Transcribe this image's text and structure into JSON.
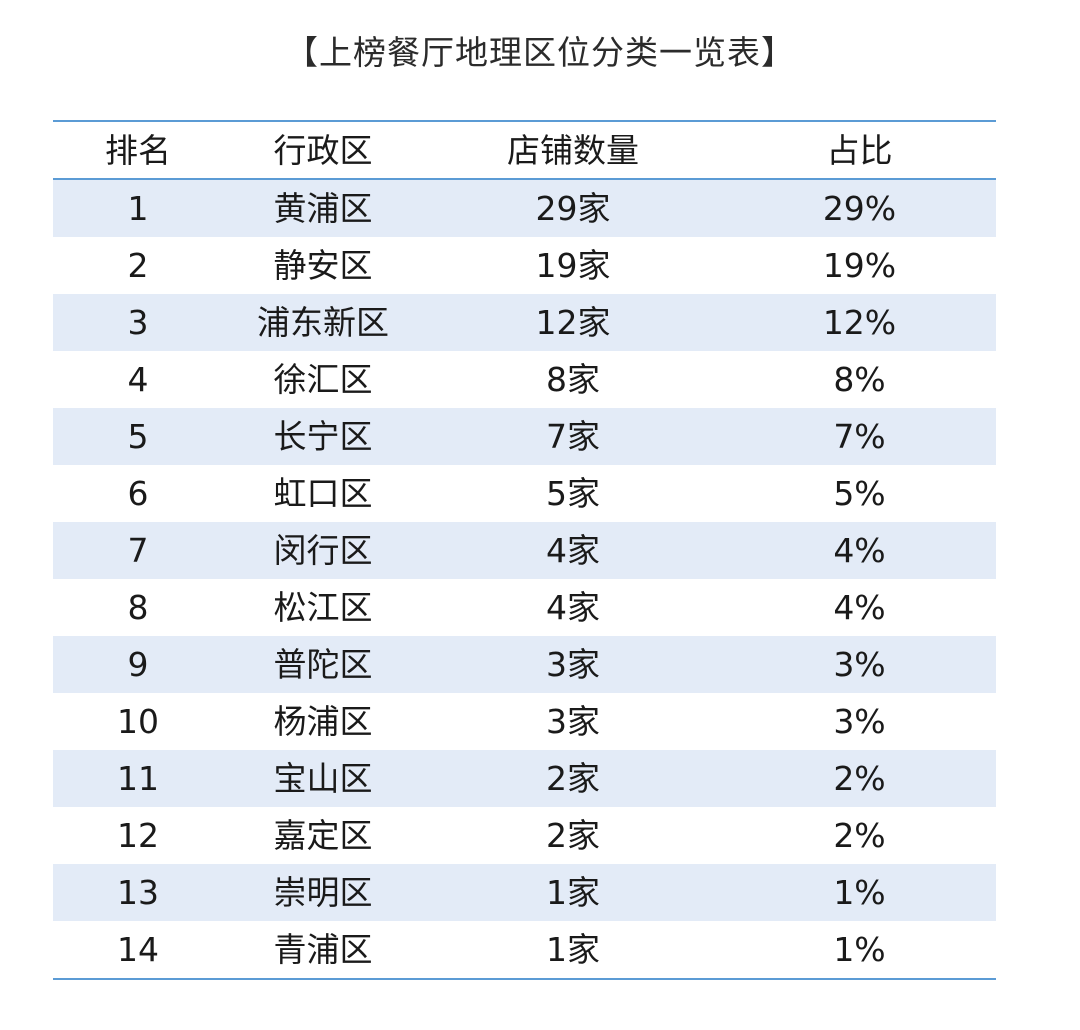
{
  "title": "【上榜餐厅地理区位分类一览表】",
  "table": {
    "headers": [
      "排名",
      "行政区",
      "店铺数量",
      "占比"
    ],
    "rows": [
      [
        "1",
        "黄浦区",
        "29家",
        "29%"
      ],
      [
        "2",
        "静安区",
        "19家",
        "19%"
      ],
      [
        "3",
        "浦东新区",
        "12家",
        "12%"
      ],
      [
        "4",
        "徐汇区",
        "8家",
        "8%"
      ],
      [
        "5",
        "长宁区",
        "7家",
        "7%"
      ],
      [
        "6",
        "虹口区",
        "5家",
        "5%"
      ],
      [
        "7",
        "闵行区",
        "4家",
        "4%"
      ],
      [
        "8",
        "松江区",
        "4家",
        "4%"
      ],
      [
        "9",
        "普陀区",
        "3家",
        "3%"
      ],
      [
        "10",
        "杨浦区",
        "3家",
        "3%"
      ],
      [
        "11",
        "宝山区",
        "2家",
        "2%"
      ],
      [
        "12",
        "嘉定区",
        "2家",
        "2%"
      ],
      [
        "13",
        "崇明区",
        "1家",
        "1%"
      ],
      [
        "14",
        "青浦区",
        "1家",
        "1%"
      ]
    ]
  },
  "colors": {
    "rule": "#5b9bd5",
    "shaded_row": "#e3ebf7",
    "text": "#1a1a1a"
  }
}
